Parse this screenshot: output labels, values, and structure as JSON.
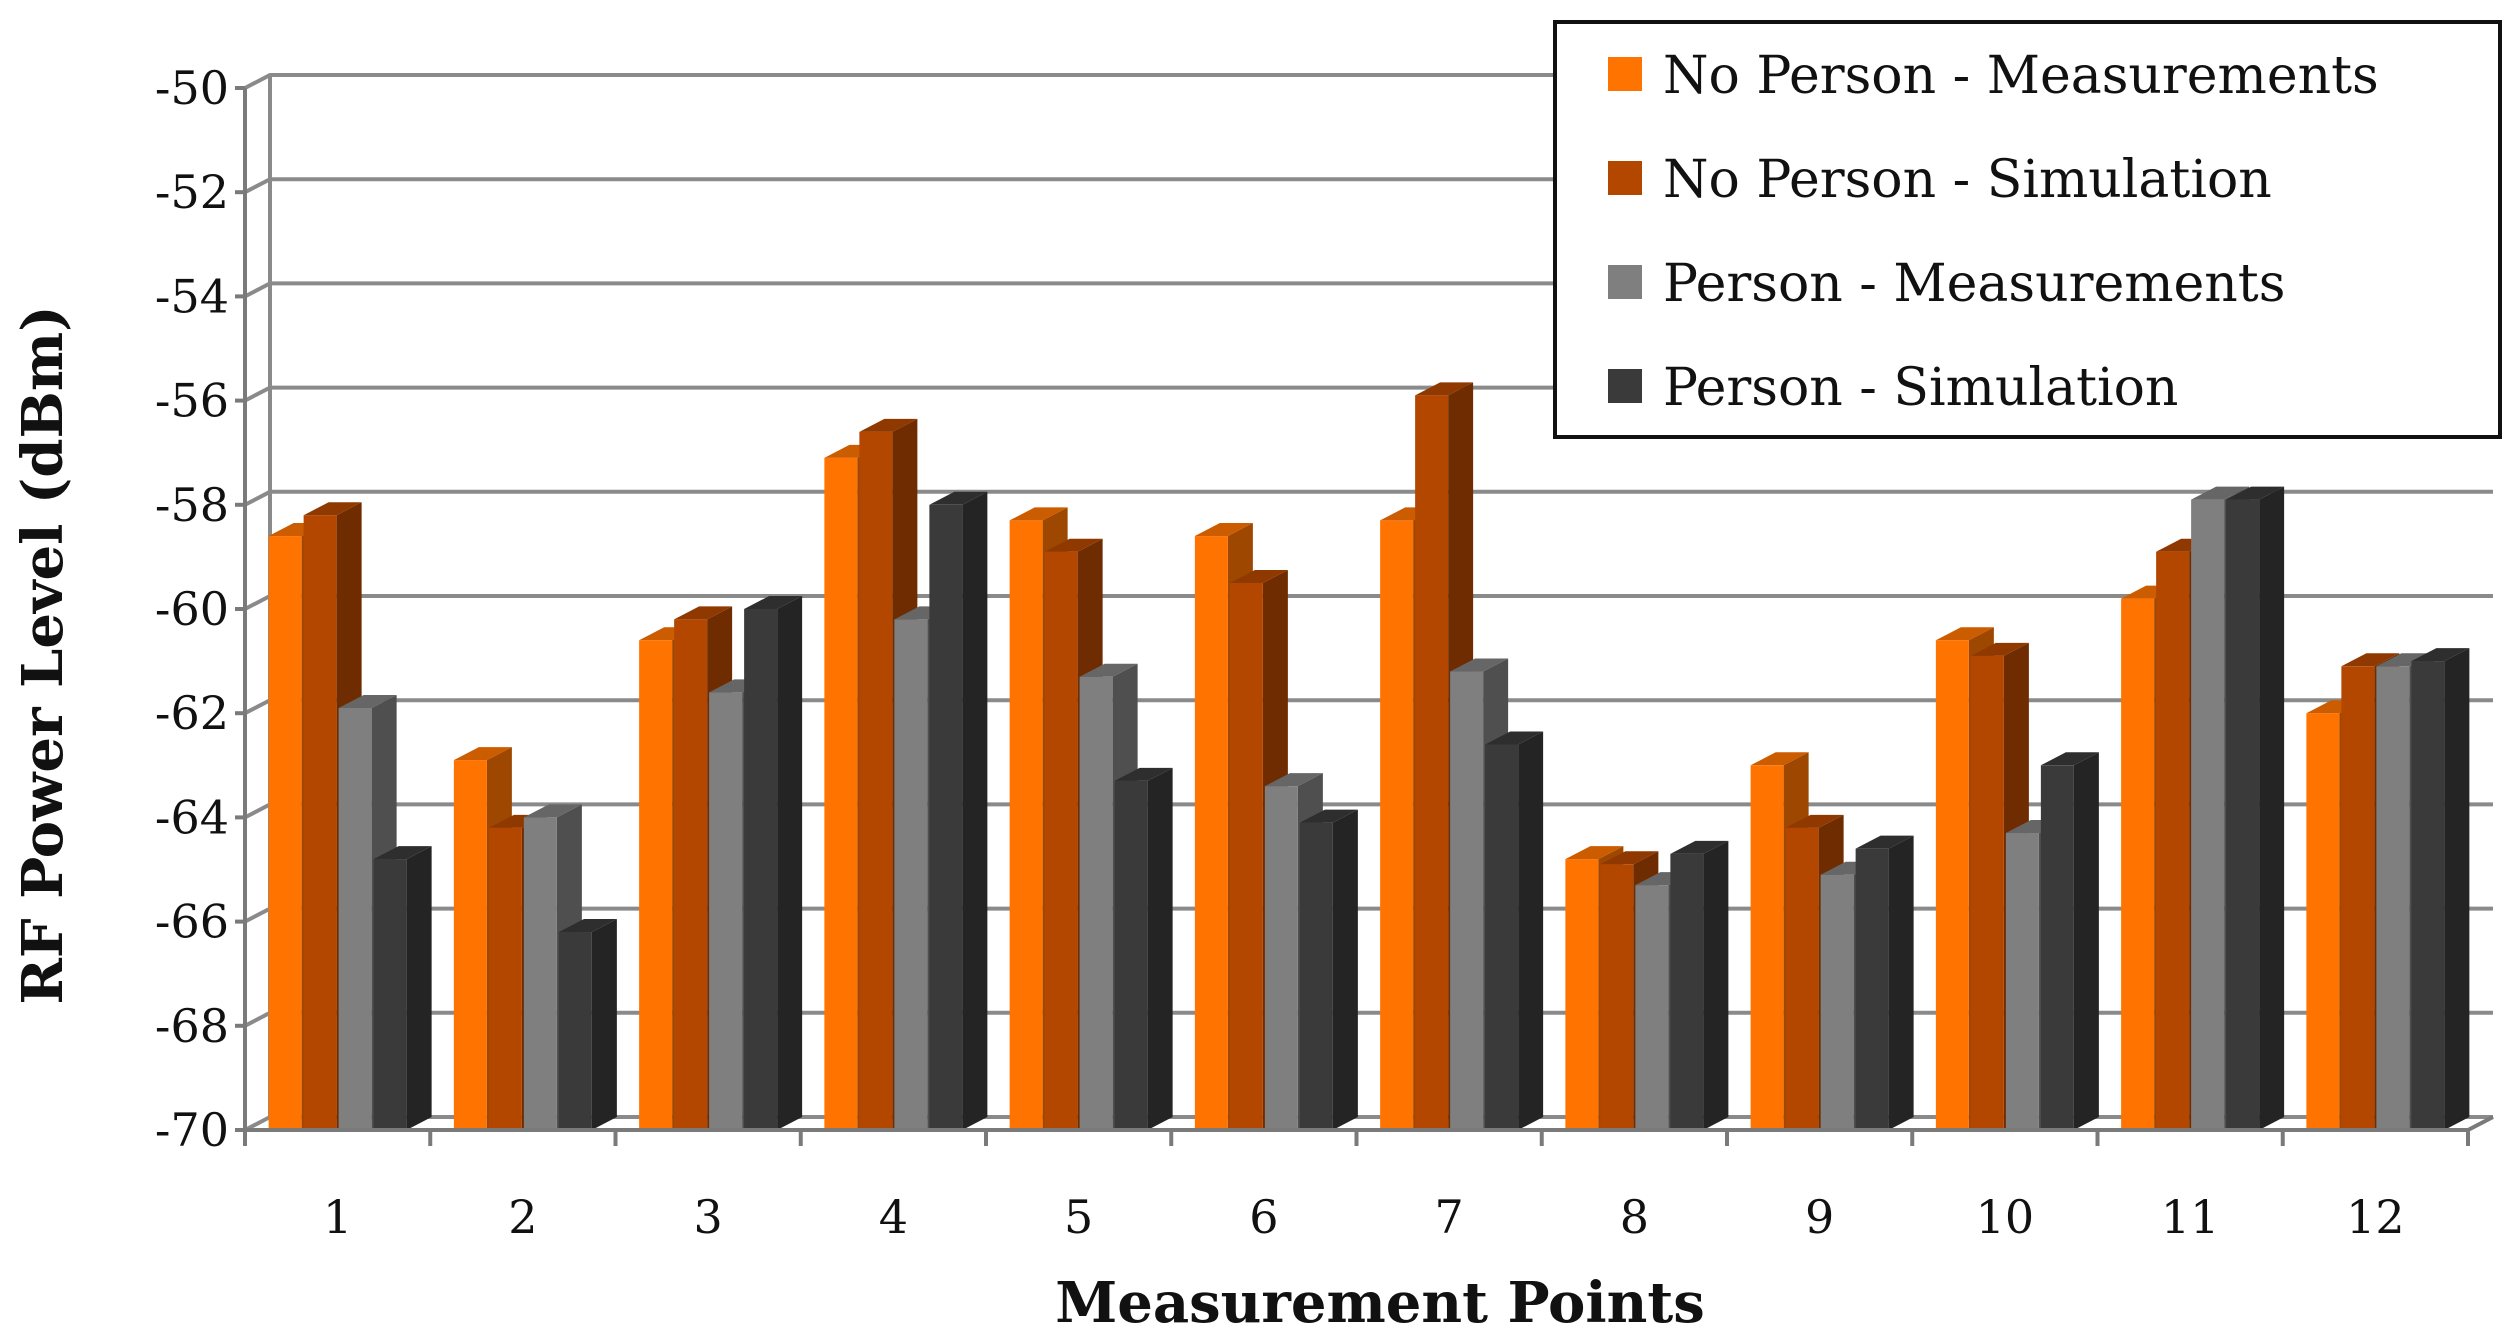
{
  "chart_data": {
    "type": "bar",
    "style": "3d-clustered-column",
    "xlabel": "Measurement Points",
    "ylabel": "RF Power Level (dBm)",
    "ylim": [
      -70,
      -50
    ],
    "ytick_step": 2,
    "categories": [
      "1",
      "2",
      "3",
      "4",
      "5",
      "6",
      "7",
      "8",
      "9",
      "10",
      "11",
      "12"
    ],
    "grid": true,
    "legend_position": "top-right",
    "series": [
      {
        "name": "No Person - Measurements",
        "color": "#ff7300",
        "values": [
          -58.6,
          -62.9,
          -60.6,
          -57.1,
          -58.3,
          -58.6,
          -58.3,
          -64.8,
          -63.0,
          -60.6,
          -59.8,
          -62.0
        ]
      },
      {
        "name": "No Person - Simulation",
        "color": "#b34700",
        "values": [
          -58.2,
          -64.2,
          -60.2,
          -56.6,
          -58.9,
          -59.5,
          -55.9,
          -64.9,
          -64.2,
          -60.9,
          -58.9,
          -61.1
        ]
      },
      {
        "name": "Person - Measurements",
        "color": "#7f7f7f",
        "values": [
          -61.9,
          -64.0,
          -61.6,
          -60.2,
          -61.3,
          -63.4,
          -61.2,
          -65.3,
          -65.1,
          -64.3,
          -57.9,
          -61.1
        ]
      },
      {
        "name": "Person - Simulation",
        "color": "#3a3a3a",
        "values": [
          -64.8,
          -66.2,
          -60.0,
          -58.0,
          -63.3,
          -64.1,
          -62.6,
          -64.7,
          -64.6,
          -63.0,
          -57.9,
          -61.0
        ]
      }
    ]
  }
}
